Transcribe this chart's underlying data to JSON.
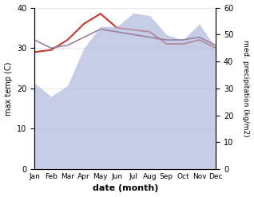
{
  "months": [
    "Jan",
    "Feb",
    "Mar",
    "Apr",
    "May",
    "Jun",
    "Jul",
    "Aug",
    "Sep",
    "Oct",
    "Nov",
    "Dec"
  ],
  "month_indices": [
    0,
    1,
    2,
    3,
    4,
    5,
    6,
    7,
    8,
    9,
    10,
    11
  ],
  "temp_max": [
    29,
    29.5,
    32,
    36,
    38.5,
    35,
    34.5,
    34,
    31,
    31,
    32,
    30
  ],
  "precip_fill": [
    21,
    18,
    21,
    30,
    35,
    35,
    39,
    38,
    33,
    32,
    36,
    30
  ],
  "precip_line": [
    48,
    45,
    46,
    49,
    52,
    51,
    50,
    49,
    48,
    48,
    49,
    46
  ],
  "precip_fill_right": [
    32,
    27,
    31,
    45,
    53,
    53,
    58,
    57,
    50,
    48,
    54,
    45
  ],
  "precip_color": "#b0b8dc",
  "temp_line_color": "#c0392b",
  "precip_line_color": "#9b7fa0",
  "bg_color": "#ffffff",
  "ylim_left": [
    0,
    40
  ],
  "ylim_right": [
    0,
    60
  ],
  "yticks_left": [
    0,
    10,
    20,
    30,
    40
  ],
  "yticks_right": [
    0,
    10,
    20,
    30,
    40,
    50,
    60
  ],
  "ylabel_left": "max temp (C)",
  "ylabel_right": "med. precipitation (kg/m2)",
  "xlabel": "date (month)",
  "figsize": [
    3.18,
    2.47
  ],
  "dpi": 100
}
